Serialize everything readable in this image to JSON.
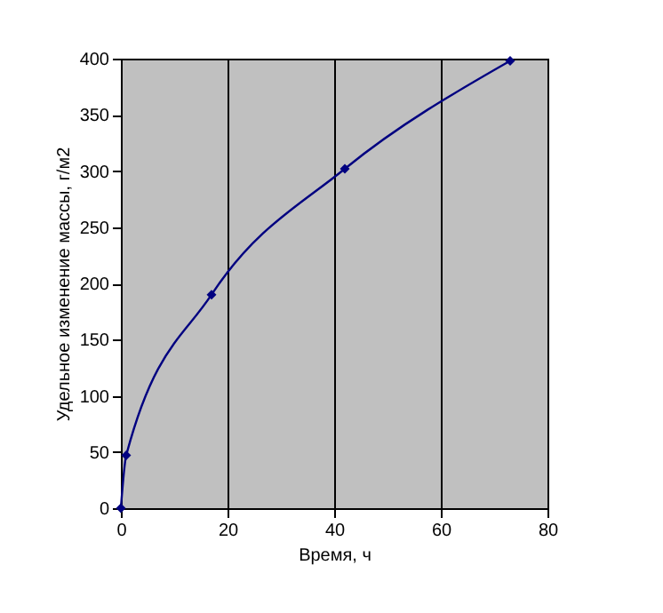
{
  "chart_data": {
    "type": "line",
    "xlabel": "Время, ч",
    "ylabel": "Удельное изменение массы, г/м2",
    "x": [
      0,
      1,
      17,
      42,
      73
    ],
    "series": [
      {
        "color": "#000080",
        "values": [
          0,
          47,
          190,
          302,
          398
        ]
      }
    ],
    "xlim": [
      0,
      80
    ],
    "xticks": [
      0,
      20,
      40,
      60,
      80
    ],
    "ylim": [
      0,
      400
    ],
    "yticks": [
      0,
      50,
      100,
      150,
      200,
      250,
      300,
      350,
      400
    ],
    "grid": "x",
    "marker": "diamond",
    "line_style": "solid"
  }
}
